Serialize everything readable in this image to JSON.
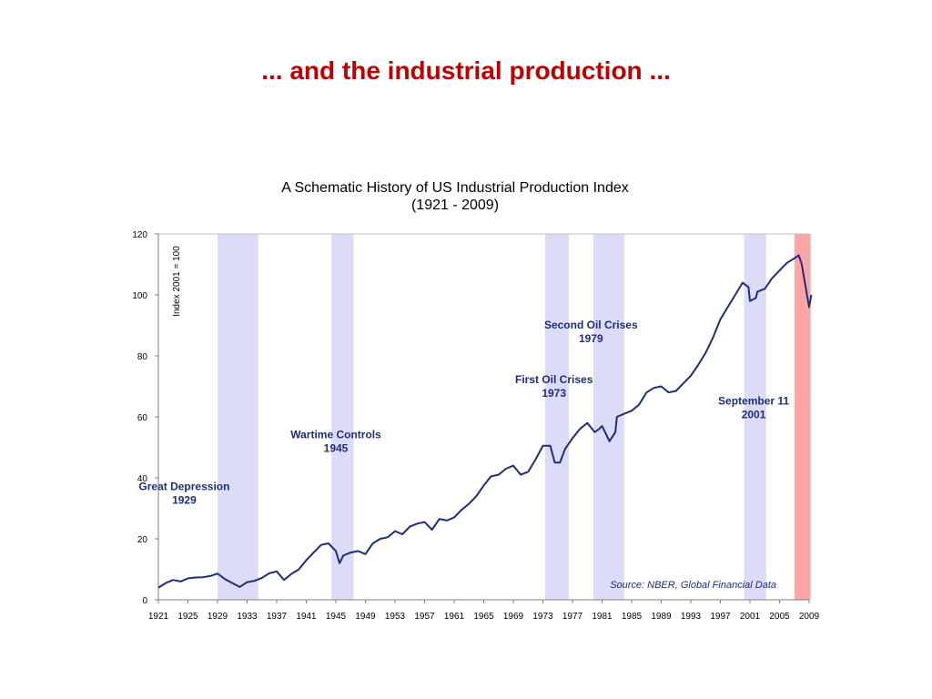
{
  "slide": {
    "title": "... and the industrial production ..."
  },
  "chart_data": {
    "type": "line",
    "title": "A Schematic History of US Industrial Production Index",
    "subtitle": "(1921 - 2009)",
    "ylabel": "Index 2001 = 100",
    "xlabel": "",
    "xlim": [
      1921,
      2009
    ],
    "ylim": [
      0,
      120
    ],
    "y_ticks": [
      0,
      20,
      40,
      60,
      80,
      100,
      120
    ],
    "x_ticks": [
      1921,
      1925,
      1929,
      1933,
      1937,
      1941,
      1945,
      1949,
      1953,
      1957,
      1961,
      1965,
      1969,
      1973,
      1977,
      1981,
      1985,
      1989,
      1993,
      1997,
      2001,
      2005,
      2009
    ],
    "grid": false,
    "series_color": "#1f2d7a",
    "source": "Source: NBER, Global Financial Data",
    "shaded_periods": [
      {
        "start": 1929.0,
        "end": 1934.5,
        "color": "#dcdcf8"
      },
      {
        "start": 1944.4,
        "end": 1947.4,
        "color": "#dcdcf8"
      },
      {
        "start": 1973.3,
        "end": 1976.5,
        "color": "#dcdcf8"
      },
      {
        "start": 1979.8,
        "end": 1984.0,
        "color": "#dcdcf8"
      },
      {
        "start": 2000.2,
        "end": 2003.2,
        "color": "#dcdcf8"
      },
      {
        "start": 2007.0,
        "end": 2009.2,
        "color": "#ffa5a5"
      }
    ],
    "annotations": [
      {
        "lines": [
          "Great Depression",
          "1929"
        ],
        "x": 1924.5,
        "y": 36
      },
      {
        "lines": [
          "Wartime Controls",
          "1945"
        ],
        "x": 1945.0,
        "y": 53
      },
      {
        "lines": [
          "First Oil Crises",
          "1973"
        ],
        "x": 1974.5,
        "y": 71
      },
      {
        "lines": [
          "Second Oil Crises",
          "1979"
        ],
        "x": 1979.5,
        "y": 89
      },
      {
        "lines": [
          "September 11",
          "2001"
        ],
        "x": 2001.5,
        "y": 64
      }
    ],
    "series": [
      {
        "x": [
          1921,
          1922,
          1923,
          1924,
          1925,
          1926,
          1927,
          1928,
          1929,
          1930,
          1931,
          1932,
          1933,
          1934,
          1935,
          1936,
          1937,
          1938,
          1939,
          1940,
          1941,
          1942,
          1943,
          1944,
          1945,
          1945.5,
          1946,
          1947,
          1948,
          1949,
          1950,
          1951,
          1952,
          1953,
          1954,
          1955,
          1956,
          1957,
          1958,
          1959,
          1960,
          1961,
          1962,
          1963,
          1964,
          1965,
          1966,
          1967,
          1968,
          1969,
          1970,
          1971,
          1972,
          1973,
          1974,
          1974.6,
          1975.3,
          1976,
          1977,
          1978,
          1979,
          1980,
          1980.6,
          1981,
          1981.6,
          1982,
          1982.8,
          1983,
          1984,
          1985,
          1986,
          1987,
          1988,
          1989,
          1990,
          1991,
          1992,
          1993,
          1994,
          1995,
          1996,
          1997,
          1998,
          1999,
          2000,
          2000.8,
          2001,
          2001.8,
          2002,
          2003,
          2004,
          2005,
          2006,
          2007,
          2007.6,
          2008,
          2008.5,
          2009,
          2009.3
        ],
        "y": [
          4,
          5.5,
          6.5,
          6,
          7,
          7.3,
          7.4,
          7.8,
          8.6,
          6.8,
          5.5,
          4.2,
          5.8,
          6.2,
          7.2,
          8.7,
          9.3,
          6.5,
          8.5,
          10,
          13,
          15.5,
          18,
          18.5,
          16,
          12,
          14.5,
          15.5,
          16,
          15,
          18.5,
          20,
          20.5,
          22.5,
          21.5,
          24,
          25,
          25.5,
          23,
          26.5,
          26,
          27,
          29.5,
          31.5,
          34,
          37.5,
          40.5,
          41,
          43,
          44,
          41,
          42,
          46,
          50.5,
          50.5,
          45,
          45,
          49.5,
          53,
          56,
          58,
          55,
          56,
          57,
          54,
          52,
          55,
          60,
          61,
          62,
          64,
          68,
          69.5,
          70,
          68,
          68.5,
          71,
          73.5,
          77,
          81,
          86,
          92,
          96,
          100,
          104,
          102.5,
          98,
          99,
          101,
          102,
          105.5,
          108,
          110.5,
          112,
          113,
          110,
          103,
          96,
          100
        ]
      }
    ]
  }
}
